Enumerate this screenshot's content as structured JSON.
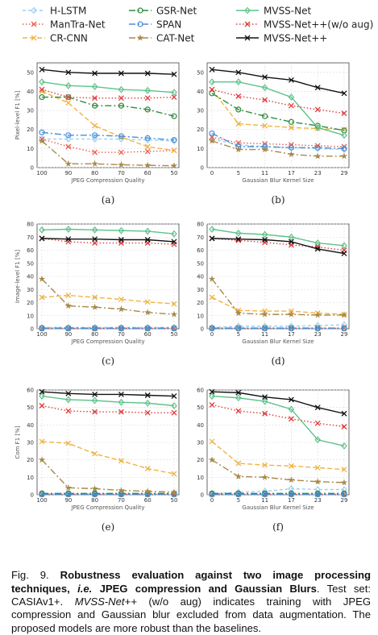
{
  "legend": {
    "entries": [
      {
        "name": "H-LSTM",
        "color": "#9dd0f5",
        "dash": "4,3",
        "marker": "diamond"
      },
      {
        "name": "ManTra-Net",
        "color": "#e8604f",
        "dash": "1.5,2.5",
        "marker": "x"
      },
      {
        "name": "CR-CNN",
        "color": "#f0b443",
        "dash": "6,3",
        "marker": "x"
      },
      {
        "name": "GSR-Net",
        "color": "#2e8b3e",
        "dash": "8,3,2,3",
        "marker": "circle"
      },
      {
        "name": "SPAN",
        "color": "#4a8fd6",
        "dash": "8,3,2,3",
        "marker": "circle"
      },
      {
        "name": "CAT-Net",
        "color": "#a8894a",
        "dash": "8,3,2,3",
        "marker": "star"
      },
      {
        "name": "MVSS-Net",
        "color": "#5fc28a",
        "dash": "",
        "marker": "diamond"
      },
      {
        "name": "MVSS-Net++(w/o aug)",
        "color": "#e03b3b",
        "dash": "1.5,2.5",
        "marker": "x"
      },
      {
        "name": "MVSS-Net++",
        "color": "#111111",
        "dash": "",
        "marker": "x"
      }
    ]
  },
  "chart_data": [
    {
      "panel": "(a)",
      "type": "line",
      "xlabel": "JPEG Compression Quality",
      "ylabel": "Pixel-level F1 [%]",
      "x": [
        100,
        90,
        80,
        70,
        60,
        50
      ],
      "xticks": [
        "100",
        "90",
        "80",
        "70",
        "60",
        "50"
      ],
      "ylim": [
        0,
        55
      ],
      "yticks": [
        0,
        10,
        20,
        30,
        40,
        50
      ],
      "grid": true,
      "series": [
        {
          "name": "H-LSTM",
          "values": [
            15,
            15,
            15,
            15,
            14.5,
            14
          ]
        },
        {
          "name": "ManTra-Net",
          "values": [
            15,
            11,
            8,
            8,
            8.5,
            9
          ]
        },
        {
          "name": "CR-CNN",
          "values": [
            40,
            34,
            22,
            16,
            11,
            9
          ]
        },
        {
          "name": "GSR-Net",
          "values": [
            37,
            37,
            32.5,
            32.5,
            30.5,
            27
          ]
        },
        {
          "name": "SPAN",
          "values": [
            18.5,
            17,
            17,
            16.5,
            15.5,
            14.5
          ]
        },
        {
          "name": "CAT-Net",
          "values": [
            14,
            2,
            2,
            1.5,
            1.2,
            1
          ]
        },
        {
          "name": "MVSS-Net",
          "values": [
            45,
            43,
            42.5,
            41,
            40.5,
            39.5
          ]
        },
        {
          "name": "MVSS-Net++(w/o aug)",
          "values": [
            41,
            37,
            36.5,
            36.5,
            36.5,
            37
          ]
        },
        {
          "name": "MVSS-Net++",
          "values": [
            51.5,
            50,
            49.5,
            49.5,
            49.5,
            49
          ]
        }
      ]
    },
    {
      "panel": "(b)",
      "type": "line",
      "xlabel": "Gaussian Blur Kernel Size",
      "ylabel": "",
      "x": [
        0,
        5,
        11,
        17,
        23,
        29
      ],
      "xticks": [
        "0",
        "5",
        "11",
        "17",
        "23",
        "29"
      ],
      "ylim": [
        0,
        55
      ],
      "yticks": [
        0,
        10,
        20,
        30,
        40,
        50
      ],
      "grid": true,
      "series": [
        {
          "name": "H-LSTM",
          "values": [
            15,
            12,
            11,
            10.5,
            10,
            9.5
          ]
        },
        {
          "name": "ManTra-Net",
          "values": [
            16,
            13,
            12.5,
            12,
            11.5,
            11
          ]
        },
        {
          "name": "CR-CNN",
          "values": [
            41,
            23,
            22,
            21,
            20.5,
            20
          ]
        },
        {
          "name": "GSR-Net",
          "values": [
            39,
            30.5,
            27,
            24,
            22,
            19.5
          ]
        },
        {
          "name": "SPAN",
          "values": [
            18,
            11,
            11,
            10.5,
            10.5,
            10
          ]
        },
        {
          "name": "CAT-Net",
          "values": [
            14,
            9.5,
            9.5,
            7,
            6,
            6
          ]
        },
        {
          "name": "MVSS-Net",
          "values": [
            45,
            45,
            42,
            37,
            21,
            17
          ]
        },
        {
          "name": "MVSS-Net++(w/o aug)",
          "values": [
            41,
            37.5,
            35.5,
            32.5,
            30.5,
            28.5
          ]
        },
        {
          "name": "MVSS-Net++",
          "values": [
            51.5,
            50,
            47.5,
            46,
            42,
            39
          ]
        }
      ]
    },
    {
      "panel": "(c)",
      "type": "line",
      "xlabel": "JPEG Compression Quality",
      "ylabel": "Image-level F1 [%]",
      "x": [
        100,
        90,
        80,
        70,
        60,
        50
      ],
      "xticks": [
        "100",
        "90",
        "80",
        "70",
        "60",
        "50"
      ],
      "ylim": [
        0,
        80
      ],
      "yticks": [
        0,
        10,
        20,
        30,
        40,
        50,
        60,
        70,
        80
      ],
      "grid": true,
      "series": [
        {
          "name": "H-LSTM",
          "values": [
            1,
            1,
            1,
            1,
            1,
            1
          ]
        },
        {
          "name": "ManTra-Net",
          "values": [
            0.3,
            0.3,
            0.3,
            0.3,
            0.3,
            0.3
          ]
        },
        {
          "name": "CR-CNN",
          "values": [
            24,
            25.5,
            24,
            22.5,
            20.5,
            19
          ]
        },
        {
          "name": "GSR-Net",
          "values": [
            0.5,
            0.5,
            0.5,
            0.5,
            0.5,
            0.5
          ]
        },
        {
          "name": "SPAN",
          "values": [
            0.2,
            0.2,
            0.2,
            0.2,
            0.2,
            0.2
          ]
        },
        {
          "name": "CAT-Net",
          "values": [
            38,
            17.5,
            16.5,
            15,
            12.5,
            11
          ]
        },
        {
          "name": "MVSS-Net",
          "values": [
            75.5,
            76,
            75.5,
            75,
            74.5,
            72.5
          ]
        },
        {
          "name": "MVSS-Net++(w/o aug)",
          "values": [
            69,
            66.5,
            65.5,
            65.5,
            65.5,
            64.5
          ]
        },
        {
          "name": "MVSS-Net++",
          "values": [
            69,
            68.5,
            68.5,
            68,
            68,
            66.5
          ]
        }
      ]
    },
    {
      "panel": "(d)",
      "type": "line",
      "xlabel": "Gaussian Blur Kernel Size",
      "ylabel": "",
      "x": [
        0,
        5,
        11,
        17,
        23,
        29
      ],
      "xticks": [
        "0",
        "5",
        "11",
        "17",
        "23",
        "29"
      ],
      "ylim": [
        0,
        80
      ],
      "yticks": [
        0,
        10,
        20,
        30,
        40,
        50,
        60,
        70,
        80
      ],
      "grid": true,
      "series": [
        {
          "name": "H-LSTM",
          "values": [
            1,
            2,
            2,
            2,
            2.5,
            3
          ]
        },
        {
          "name": "ManTra-Net",
          "values": [
            0.5,
            0.5,
            0.5,
            0.5,
            0.5,
            0.5
          ]
        },
        {
          "name": "CR-CNN",
          "values": [
            24,
            14,
            13.5,
            13.5,
            12,
            11
          ]
        },
        {
          "name": "GSR-Net",
          "values": [
            0.5,
            0.5,
            0.5,
            0.5,
            0.5,
            0.5
          ]
        },
        {
          "name": "SPAN",
          "values": [
            0.2,
            0.2,
            0.2,
            0.2,
            0.2,
            0.2
          ]
        },
        {
          "name": "CAT-Net",
          "values": [
            38,
            12,
            11,
            11,
            10.5,
            10.5
          ]
        },
        {
          "name": "MVSS-Net",
          "values": [
            76,
            73,
            72,
            70,
            65.5,
            63.5
          ]
        },
        {
          "name": "MVSS-Net++(w/o aug)",
          "values": [
            69,
            67.5,
            66,
            64,
            62.5,
            60
          ]
        },
        {
          "name": "MVSS-Net++",
          "values": [
            69,
            68.5,
            68,
            66.5,
            61,
            57.5
          ]
        }
      ]
    },
    {
      "panel": "(e)",
      "type": "line",
      "xlabel": "JPEG Compression Quality",
      "ylabel": "Com F1 [%]",
      "x": [
        100,
        90,
        80,
        70,
        60,
        50
      ],
      "xticks": [
        "100",
        "90",
        "80",
        "70",
        "60",
        "50"
      ],
      "ylim": [
        0,
        60
      ],
      "yticks": [
        0,
        10,
        20,
        30,
        40,
        50,
        60
      ],
      "grid": true,
      "series": [
        {
          "name": "H-LSTM",
          "values": [
            0.5,
            0.5,
            0.5,
            0.5,
            0.5,
            0.5
          ]
        },
        {
          "name": "ManTra-Net",
          "values": [
            0.3,
            0.3,
            0.3,
            0.3,
            0.3,
            0.3
          ]
        },
        {
          "name": "CR-CNN",
          "values": [
            30.5,
            29.5,
            23.5,
            19.5,
            15,
            12
          ]
        },
        {
          "name": "GSR-Net",
          "values": [
            0.8,
            0.8,
            0.8,
            0.8,
            0.8,
            0.8
          ]
        },
        {
          "name": "SPAN",
          "values": [
            0.2,
            0.2,
            0.2,
            0.2,
            0.2,
            0.2
          ]
        },
        {
          "name": "CAT-Net",
          "values": [
            20,
            4,
            3.5,
            2.5,
            2,
            1.5
          ]
        },
        {
          "name": "MVSS-Net",
          "values": [
            56.5,
            54.5,
            54,
            53,
            52.5,
            51
          ]
        },
        {
          "name": "MVSS-Net++(w/o aug)",
          "values": [
            51,
            48,
            47.5,
            47.5,
            47,
            47
          ]
        },
        {
          "name": "MVSS-Net++",
          "values": [
            59,
            58,
            57.5,
            57.5,
            57,
            56.5
          ]
        }
      ]
    },
    {
      "panel": "(f)",
      "type": "line",
      "xlabel": "Gaussian Blur Kernel Size",
      "ylabel": "",
      "x": [
        0,
        5,
        11,
        17,
        23,
        29
      ],
      "xticks": [
        "0",
        "5",
        "11",
        "17",
        "23",
        "29"
      ],
      "ylim": [
        0,
        60
      ],
      "yticks": [
        0,
        10,
        20,
        30,
        40,
        50,
        60
      ],
      "grid": true,
      "series": [
        {
          "name": "H-LSTM",
          "values": [
            0.5,
            1.5,
            2,
            3.5,
            3,
            3
          ]
        },
        {
          "name": "ManTra-Net",
          "values": [
            0.3,
            0.3,
            0.3,
            0.3,
            0.3,
            0.3
          ]
        },
        {
          "name": "CR-CNN",
          "values": [
            30.5,
            18,
            17,
            16.5,
            15.5,
            14.5
          ]
        },
        {
          "name": "GSR-Net",
          "values": [
            0.8,
            0.8,
            0.8,
            0.8,
            0.8,
            0.8
          ]
        },
        {
          "name": "SPAN",
          "values": [
            0.2,
            0.2,
            0.2,
            0.2,
            0.2,
            0.2
          ]
        },
        {
          "name": "CAT-Net",
          "values": [
            20,
            10.5,
            10,
            8.5,
            7.5,
            7
          ]
        },
        {
          "name": "MVSS-Net",
          "values": [
            56.5,
            55.5,
            53.5,
            49,
            31.5,
            28
          ]
        },
        {
          "name": "MVSS-Net++(w/o aug)",
          "values": [
            51.5,
            48,
            46.5,
            43.5,
            41,
            39
          ]
        },
        {
          "name": "MVSS-Net++",
          "values": [
            59,
            58.5,
            56,
            54.5,
            50,
            46.5
          ]
        }
      ]
    }
  ],
  "caption": {
    "fig_label": "Fig. 9.",
    "title_bold": "Robustness evaluation against two image processing techniques,",
    "ie": "i.e.",
    "title_bold_2": "JPEG compression and Gaussian Blurs",
    "test_set": ". Test set: CASIAv1+.",
    "model_italic": "MVSS-Net++",
    "rest": "(w/o aug) indicates training with JPEG compression and Gaussian blur excluded from data augmentation. The proposed models are more robust than the baselines."
  }
}
